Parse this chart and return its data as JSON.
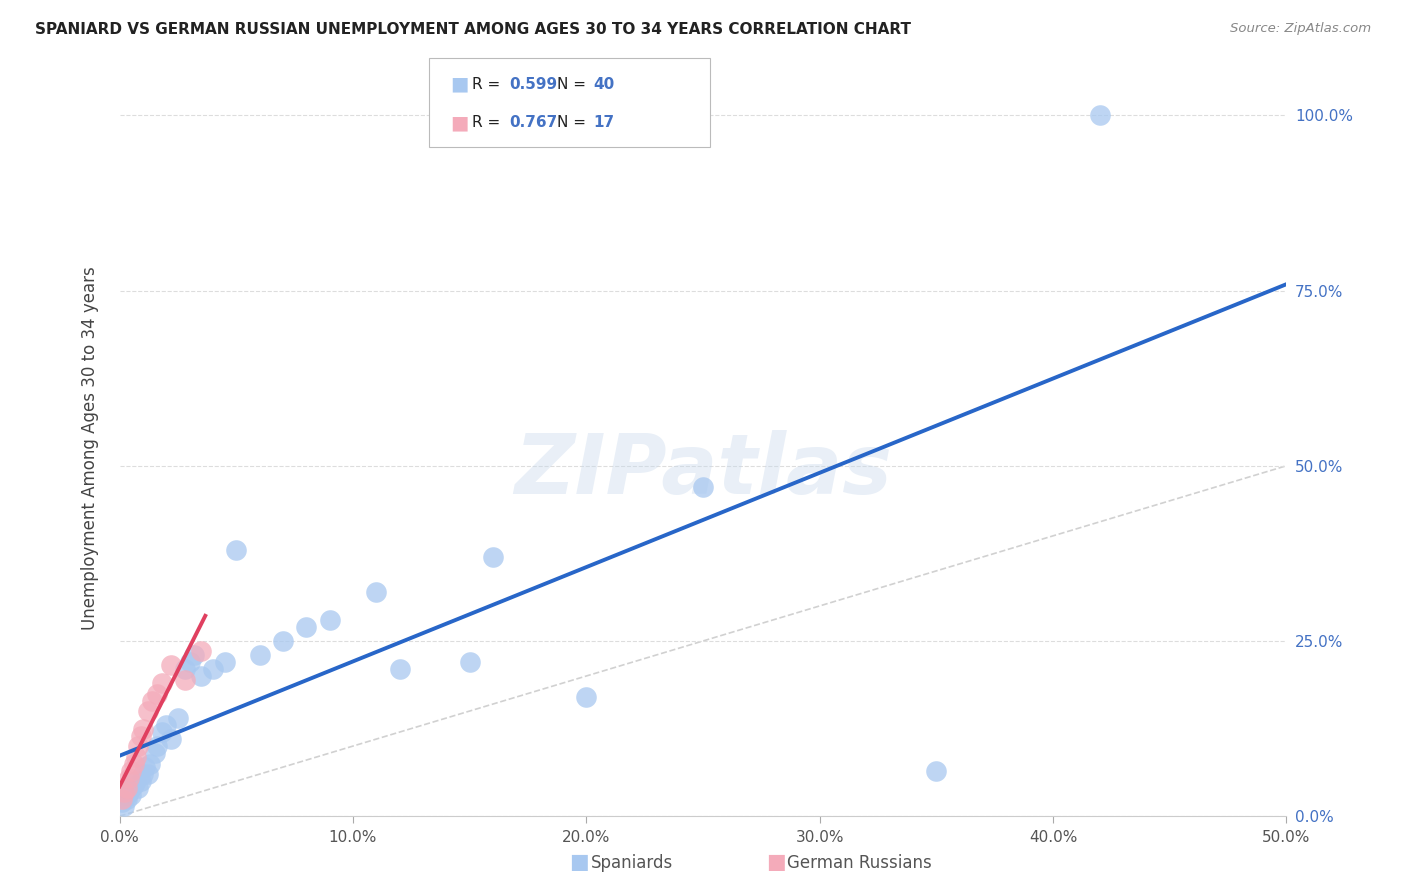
{
  "title": "SPANIARD VS GERMAN RUSSIAN UNEMPLOYMENT AMONG AGES 30 TO 34 YEARS CORRELATION CHART",
  "source": "Source: ZipAtlas.com",
  "ylabel": "Unemployment Among Ages 30 to 34 years",
  "spaniard_r": "0.599",
  "spaniard_n": "40",
  "german_r": "0.767",
  "german_n": "17",
  "spaniard_color": "#A8C8F0",
  "german_color": "#F4ABBA",
  "spaniard_line_color": "#2866C8",
  "german_line_color": "#E04060",
  "ref_line_color": "#CCCCCC",
  "xlim": [
    0.0,
    0.5
  ],
  "ylim": [
    0.0,
    1.05
  ],
  "xticks": [
    0.0,
    0.1,
    0.2,
    0.3,
    0.4,
    0.5
  ],
  "yticks": [
    0.0,
    0.25,
    0.5,
    0.75,
    1.0
  ],
  "xticklabels": [
    "0.0%",
    "10.0%",
    "20.0%",
    "30.0%",
    "40.0%",
    "50.0%"
  ],
  "yticklabels_right": [
    "0.0%",
    "25.0%",
    "50.0%",
    "75.0%",
    "100.0%"
  ],
  "spaniard_x": [
    0.001,
    0.002,
    0.003,
    0.003,
    0.004,
    0.005,
    0.005,
    0.006,
    0.007,
    0.008,
    0.009,
    0.01,
    0.011,
    0.012,
    0.013,
    0.015,
    0.016,
    0.018,
    0.02,
    0.022,
    0.025,
    0.028,
    0.03,
    0.032,
    0.035,
    0.04,
    0.045,
    0.05,
    0.06,
    0.07,
    0.08,
    0.09,
    0.11,
    0.12,
    0.15,
    0.16,
    0.2,
    0.25,
    0.35,
    0.42
  ],
  "spaniard_y": [
    0.02,
    0.015,
    0.025,
    0.03,
    0.035,
    0.04,
    0.03,
    0.045,
    0.05,
    0.04,
    0.05,
    0.06,
    0.07,
    0.06,
    0.075,
    0.09,
    0.1,
    0.12,
    0.13,
    0.11,
    0.14,
    0.21,
    0.22,
    0.23,
    0.2,
    0.21,
    0.22,
    0.38,
    0.23,
    0.25,
    0.27,
    0.28,
    0.32,
    0.21,
    0.22,
    0.37,
    0.17,
    0.47,
    0.065,
    1.0
  ],
  "german_x": [
    0.001,
    0.002,
    0.003,
    0.004,
    0.005,
    0.006,
    0.007,
    0.008,
    0.009,
    0.01,
    0.012,
    0.014,
    0.016,
    0.018,
    0.022,
    0.028,
    0.035
  ],
  "german_y": [
    0.025,
    0.035,
    0.04,
    0.055,
    0.065,
    0.075,
    0.085,
    0.1,
    0.115,
    0.125,
    0.15,
    0.165,
    0.175,
    0.19,
    0.215,
    0.195,
    0.235
  ]
}
